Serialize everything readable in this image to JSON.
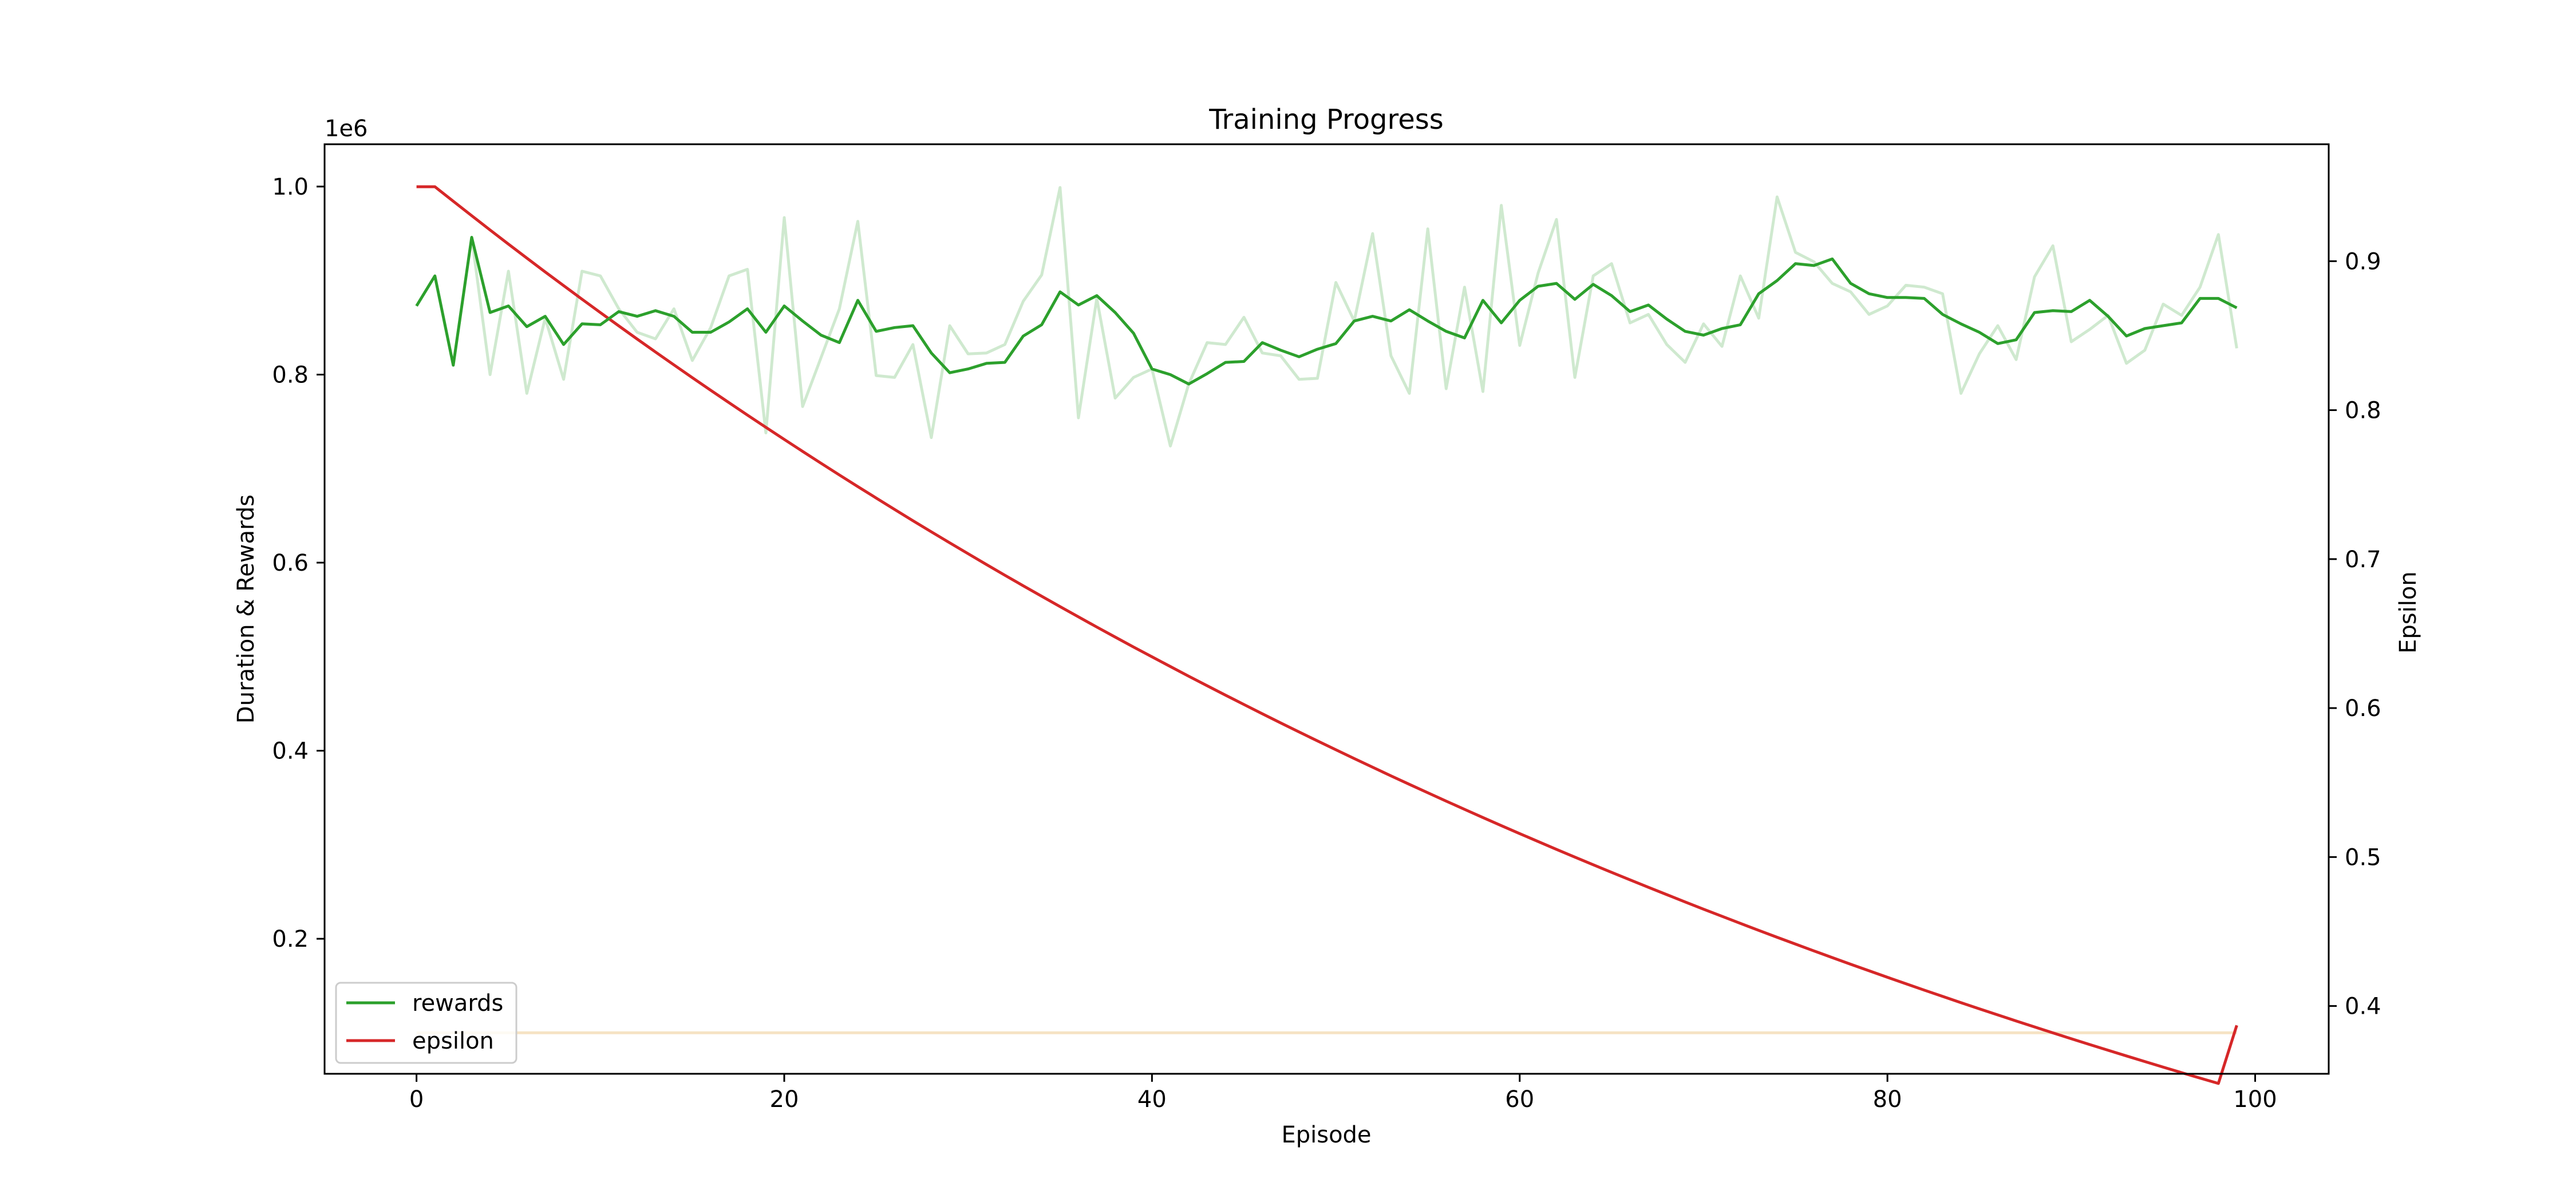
{
  "chart_data": {
    "type": "line",
    "title": "Training Progress",
    "xlabel": "Episode",
    "ylabel": "Duration & Rewards",
    "y2label": "Epsilon",
    "y_offset_text": "1e6",
    "xlim": [
      -5,
      104
    ],
    "ylim": [
      0.0564,
      1.045
    ],
    "y2lim": [
      0.3545,
      0.9785
    ],
    "xticks": [
      0,
      20,
      40,
      60,
      80,
      100
    ],
    "xtick_labels": [
      "0",
      "20",
      "40",
      "60",
      "80",
      "100"
    ],
    "yticks": [
      0.2,
      0.4,
      0.6,
      0.8,
      1.0
    ],
    "ytick_labels": [
      "0.2",
      "0.4",
      "0.6",
      "0.8",
      "1.0"
    ],
    "y2ticks": [
      0.4,
      0.5,
      0.6,
      0.7,
      0.8,
      0.9
    ],
    "y2tick_labels": [
      "0.4",
      "0.5",
      "0.6",
      "0.7",
      "0.8",
      "0.9"
    ],
    "grid": false,
    "legend_position": "lower-left",
    "colors": {
      "rewards": "#2ca02c",
      "rewards_raw": "#cfe9cf",
      "epsilon": "#d62728",
      "duration": "#f6e3c4"
    },
    "series": [
      {
        "name": "rewards",
        "axis": "left",
        "style": "smoothed",
        "x": [
          0,
          1,
          2,
          3,
          4,
          5,
          6,
          7,
          8,
          9,
          10,
          11,
          12,
          13,
          14,
          15,
          16,
          17,
          18,
          19,
          20,
          21,
          22,
          23,
          24,
          25,
          26,
          27,
          28,
          29,
          30,
          31,
          32,
          33,
          34,
          35,
          36,
          37,
          38,
          39,
          40,
          41,
          42,
          43,
          44,
          45,
          46,
          47,
          48,
          49,
          50,
          51,
          52,
          53,
          54,
          55,
          56,
          57,
          58,
          59,
          60,
          61,
          62,
          63,
          64,
          65,
          66,
          67,
          68,
          69,
          70,
          71,
          72,
          73,
          74,
          75,
          76,
          77,
          78,
          79,
          80,
          81,
          82,
          83,
          84,
          85,
          86,
          87,
          88,
          89,
          90,
          91,
          92,
          93,
          94,
          95,
          96,
          97,
          98,
          99
        ],
        "values": [
          0.873,
          0.905,
          0.81,
          0.946,
          0.866,
          0.873,
          0.851,
          0.862,
          0.832,
          0.854,
          0.853,
          0.867,
          0.862,
          0.868,
          0.862,
          0.845,
          0.845,
          0.856,
          0.87,
          0.845,
          0.873,
          0.857,
          0.842,
          0.834,
          0.879,
          0.846,
          0.85,
          0.852,
          0.823,
          0.802,
          0.806,
          0.812,
          0.813,
          0.841,
          0.853,
          0.888,
          0.874,
          0.884,
          0.866,
          0.844,
          0.806,
          0.8,
          0.79,
          0.801,
          0.813,
          0.814,
          0.834,
          0.826,
          0.819,
          0.827,
          0.833,
          0.857,
          0.862,
          0.857,
          0.869,
          0.857,
          0.846,
          0.839,
          0.879,
          0.855,
          0.879,
          0.894,
          0.897,
          0.88,
          0.896,
          0.884,
          0.867,
          0.874,
          0.859,
          0.846,
          0.842,
          0.849,
          0.853,
          0.886,
          0.9,
          0.918,
          0.916,
          0.923,
          0.897,
          0.886,
          0.882,
          0.882,
          0.881,
          0.864,
          0.854,
          0.845,
          0.833,
          0.837,
          0.866,
          0.868,
          0.867,
          0.879,
          0.862,
          0.841,
          0.849,
          0.852,
          0.855,
          0.881,
          0.881,
          0.871
        ]
      },
      {
        "name": "",
        "axis": "left",
        "style": "raw",
        "x": [
          0,
          1,
          2,
          3,
          4,
          5,
          6,
          7,
          8,
          9,
          10,
          11,
          12,
          13,
          14,
          15,
          16,
          17,
          18,
          19,
          20,
          21,
          22,
          23,
          24,
          25,
          26,
          27,
          28,
          29,
          30,
          31,
          32,
          33,
          34,
          35,
          36,
          37,
          38,
          39,
          40,
          41,
          42,
          43,
          44,
          45,
          46,
          47,
          48,
          49,
          50,
          51,
          52,
          53,
          54,
          55,
          56,
          57,
          58,
          59,
          60,
          61,
          62,
          63,
          64,
          65,
          66,
          67,
          68,
          69,
          70,
          71,
          72,
          73,
          74,
          75,
          76,
          77,
          78,
          79,
          80,
          81,
          82,
          83,
          84,
          85,
          86,
          87,
          88,
          89,
          90,
          91,
          92,
          93,
          94,
          95,
          96,
          97,
          98,
          99
        ],
        "values": [
          0.873,
          0.905,
          0.81,
          0.946,
          0.8,
          0.91,
          0.78,
          0.86,
          0.795,
          0.91,
          0.905,
          0.87,
          0.845,
          0.838,
          0.87,
          0.815,
          0.85,
          0.905,
          0.912,
          0.738,
          0.967,
          0.766,
          0.818,
          0.87,
          0.963,
          0.799,
          0.797,
          0.832,
          0.733,
          0.852,
          0.822,
          0.823,
          0.832,
          0.878,
          0.906,
          0.999,
          0.754,
          0.881,
          0.775,
          0.797,
          0.806,
          0.724,
          0.79,
          0.834,
          0.832,
          0.861,
          0.823,
          0.82,
          0.795,
          0.796,
          0.898,
          0.857,
          0.95,
          0.82,
          0.78,
          0.955,
          0.785,
          0.893,
          0.782,
          0.98,
          0.831,
          0.908,
          0.965,
          0.797,
          0.905,
          0.918,
          0.855,
          0.864,
          0.832,
          0.813,
          0.854,
          0.83,
          0.905,
          0.86,
          0.989,
          0.93,
          0.92,
          0.897,
          0.888,
          0.864,
          0.873,
          0.895,
          0.893,
          0.886,
          0.78,
          0.822,
          0.852,
          0.816,
          0.904,
          0.937,
          0.835,
          0.848,
          0.863,
          0.812,
          0.826,
          0.875,
          0.863,
          0.893,
          0.949,
          0.828
        ]
      },
      {
        "name": "",
        "axis": "left",
        "style": "flat",
        "x": [
          0,
          99
        ],
        "values": [
          0.1,
          0.1
        ]
      },
      {
        "name": "epsilon",
        "axis": "right",
        "style": "decay",
        "x": [
          0,
          1,
          99
        ],
        "values": [
          0.95,
          0.95,
          0.387
        ],
        "decay_factor": 0.9897
      }
    ]
  }
}
